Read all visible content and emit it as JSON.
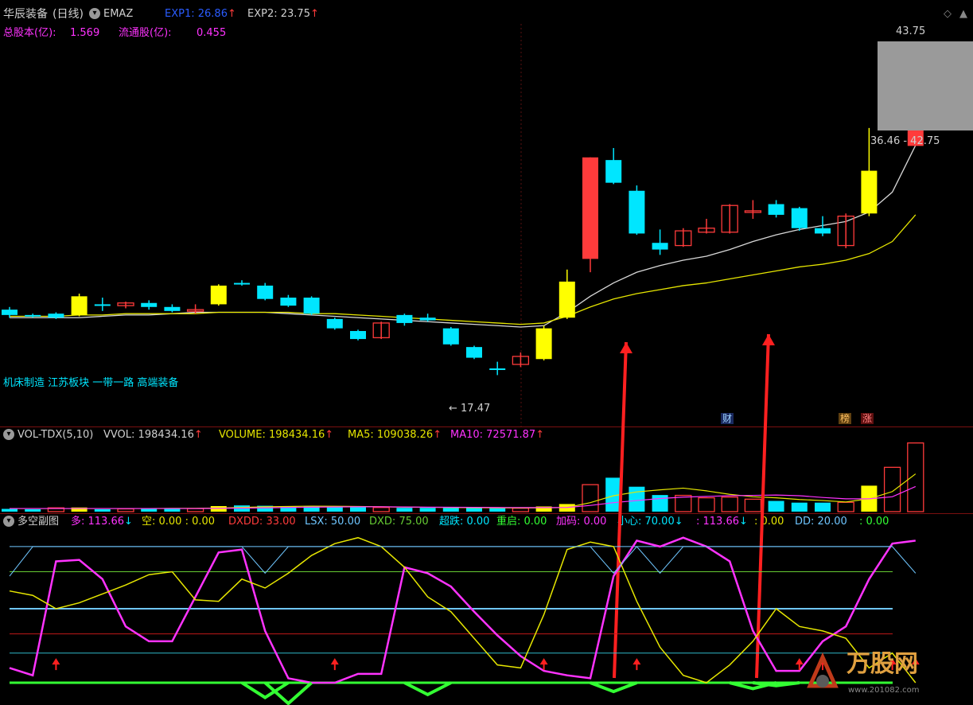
{
  "header": {
    "stock_name": "华辰装备",
    "period": "(日线)",
    "indicator_name": "EMAZ",
    "exp1_label": "EXP1: 26.86",
    "exp2_label": "EXP2: 23.75",
    "total_shares_label": "总股本(亿):",
    "total_shares_value": "1.569",
    "float_shares_label": "流通股(亿):",
    "float_shares_value": "0.455"
  },
  "annotations": {
    "sectors": "机床制造 江苏板块 一带一路 高端装备",
    "low_price": "17.47",
    "high_price": "43.75",
    "price_range": "36.46 - 42.75",
    "badge_finance": "财",
    "badge_rank": "榜",
    "badge_rise": "涨"
  },
  "volume_pane": {
    "title": "VOL-TDX(5,10)",
    "vvol": "VVOL: 198434.16",
    "volume": "VOLUME: 198434.16",
    "ma5": "MA5: 109038.26",
    "ma10": "MA10: 72571.87"
  },
  "osc_pane": {
    "title": "多空副图",
    "duo": "多: 113.66",
    "kong": "空: 0.00 : 0.00",
    "dxdd": "DXDD: 33.00",
    "lsx": "LSX: 50.00",
    "dxd": "DXD: 75.00",
    "chaodie": "超跌: 0.00",
    "chongqi": "重启: 0.00",
    "jiama": "加码: 0.00",
    "xiaoxin": "小心: 70.00",
    "val2": ": 113.66",
    "val3": ": 0.00",
    "dd": "DD: 20.00",
    "val4": ": 0.00"
  },
  "watermark": {
    "brand": "万股网",
    "url": "www.201082.com"
  },
  "colors": {
    "up": "#ff3b3b",
    "down": "#00e6ff",
    "flat": "#ffff00",
    "ma_white": "#d8d8d8",
    "ma_yellow": "#e6e600",
    "magenta": "#ff33ff",
    "green": "#33ff33",
    "header_text": "#d0d0d0",
    "pane_border": "#7a1010"
  },
  "chart_data": [
    {
      "type": "candlestick",
      "name": "EMAZ",
      "candles": [
        {
          "o": 24.2,
          "c": 23.8,
          "h": 24.4,
          "l": 23.6,
          "dir": "down"
        },
        {
          "o": 23.8,
          "c": 23.7,
          "h": 23.9,
          "l": 23.6,
          "dir": "down"
        },
        {
          "o": 23.6,
          "c": 23.9,
          "h": 24.0,
          "l": 23.5,
          "dir": "down"
        },
        {
          "o": 23.8,
          "c": 25.2,
          "h": 25.4,
          "l": 23.7,
          "dir": "flat"
        },
        {
          "o": 24.6,
          "c": 24.6,
          "h": 25.1,
          "l": 24.1,
          "dir": "down"
        },
        {
          "o": 24.7,
          "c": 24.5,
          "h": 24.8,
          "l": 24.3,
          "dir": "up"
        },
        {
          "o": 24.7,
          "c": 24.4,
          "h": 24.9,
          "l": 24.2,
          "dir": "down"
        },
        {
          "o": 24.4,
          "c": 24.1,
          "h": 24.6,
          "l": 24.0,
          "dir": "down"
        },
        {
          "o": 24.2,
          "c": 24.1,
          "h": 24.6,
          "l": 23.9,
          "dir": "up"
        },
        {
          "o": 24.6,
          "c": 26.0,
          "h": 26.1,
          "l": 24.5,
          "dir": "flat"
        },
        {
          "o": 26.2,
          "c": 26.1,
          "h": 26.4,
          "l": 26.0,
          "dir": "down"
        },
        {
          "o": 26.0,
          "c": 25.0,
          "h": 26.2,
          "l": 24.9,
          "dir": "down"
        },
        {
          "o": 25.1,
          "c": 24.5,
          "h": 25.3,
          "l": 24.4,
          "dir": "down"
        },
        {
          "o": 25.1,
          "c": 23.9,
          "h": 25.2,
          "l": 23.8,
          "dir": "down"
        },
        {
          "o": 23.5,
          "c": 22.8,
          "h": 23.6,
          "l": 22.7,
          "dir": "down"
        },
        {
          "o": 22.6,
          "c": 22.0,
          "h": 22.7,
          "l": 21.9,
          "dir": "down"
        },
        {
          "o": 22.1,
          "c": 23.2,
          "h": 23.3,
          "l": 22.0,
          "dir": "up"
        },
        {
          "o": 23.8,
          "c": 23.2,
          "h": 23.9,
          "l": 23.0,
          "dir": "down"
        },
        {
          "o": 23.6,
          "c": 23.4,
          "h": 23.9,
          "l": 23.3,
          "dir": "down"
        },
        {
          "o": 22.8,
          "c": 21.6,
          "h": 22.9,
          "l": 21.5,
          "dir": "down"
        },
        {
          "o": 21.4,
          "c": 20.6,
          "h": 21.5,
          "l": 20.5,
          "dir": "down"
        },
        {
          "o": 19.8,
          "c": 19.7,
          "h": 20.3,
          "l": 19.3,
          "dir": "down"
        },
        {
          "o": 20.1,
          "c": 20.7,
          "h": 21.0,
          "l": 19.9,
          "dir": "up"
        },
        {
          "o": 20.5,
          "c": 22.8,
          "h": 23.0,
          "l": 20.4,
          "dir": "flat"
        },
        {
          "o": 23.6,
          "c": 26.3,
          "h": 27.2,
          "l": 23.5,
          "dir": "flat"
        },
        {
          "o": 28.0,
          "c": 35.6,
          "h": 35.6,
          "l": 27.0,
          "dir": "up"
        },
        {
          "o": 35.4,
          "c": 33.7,
          "h": 36.3,
          "l": 33.6,
          "dir": "down"
        },
        {
          "o": 33.1,
          "c": 29.9,
          "h": 33.5,
          "l": 29.8,
          "dir": "down"
        },
        {
          "o": 29.2,
          "c": 28.7,
          "h": 30.2,
          "l": 28.3,
          "dir": "down"
        },
        {
          "o": 29.0,
          "c": 30.1,
          "h": 30.3,
          "l": 28.9,
          "dir": "up"
        },
        {
          "o": 30.0,
          "c": 30.3,
          "h": 31.0,
          "l": 29.9,
          "dir": "up"
        },
        {
          "o": 30.0,
          "c": 32.0,
          "h": 32.1,
          "l": 29.9,
          "dir": "up"
        },
        {
          "o": 31.5,
          "c": 31.6,
          "h": 32.4,
          "l": 31.0,
          "dir": "up"
        },
        {
          "o": 32.1,
          "c": 31.3,
          "h": 32.4,
          "l": 31.1,
          "dir": "down"
        },
        {
          "o": 31.8,
          "c": 30.3,
          "h": 31.9,
          "l": 30.1,
          "dir": "down"
        },
        {
          "o": 30.3,
          "c": 29.9,
          "h": 31.2,
          "l": 29.7,
          "dir": "down"
        },
        {
          "o": 29.0,
          "c": 31.2,
          "h": 31.4,
          "l": 28.8,
          "dir": "up"
        },
        {
          "o": 31.4,
          "c": 34.6,
          "h": 37.8,
          "l": 31.2,
          "dir": "flat"
        },
        {
          "o": 38.3,
          "c": 42.5,
          "h": 42.5,
          "l": 38.3,
          "dir": "up"
        },
        {
          "o": 36.46,
          "c": 42.75,
          "h": 43.75,
          "l": 36.46,
          "dir": "up"
        }
      ],
      "ma_white": [
        23.6,
        23.6,
        23.6,
        23.6,
        23.7,
        23.8,
        23.8,
        23.9,
        24.0,
        24.0,
        24.0,
        24.0,
        23.9,
        23.8,
        23.7,
        23.6,
        23.5,
        23.4,
        23.3,
        23.2,
        23.1,
        23.0,
        22.9,
        23.0,
        24.0,
        25.2,
        26.2,
        27.0,
        27.5,
        27.9,
        28.2,
        28.7,
        29.3,
        29.8,
        30.2,
        30.5,
        30.8,
        31.5,
        33.0,
        36.5
      ],
      "ma_yellow": [
        23.7,
        23.7,
        23.7,
        23.8,
        23.8,
        23.9,
        23.9,
        23.9,
        23.9,
        24.0,
        24.0,
        24.0,
        24.0,
        23.9,
        23.9,
        23.8,
        23.7,
        23.6,
        23.5,
        23.4,
        23.3,
        23.2,
        23.1,
        23.2,
        23.7,
        24.4,
        25.0,
        25.4,
        25.7,
        26.0,
        26.2,
        26.5,
        26.8,
        27.1,
        27.4,
        27.6,
        27.9,
        28.4,
        29.3,
        31.3
      ]
    },
    {
      "type": "bar",
      "name": "VOL-TDX(5,10)",
      "volume": [
        8000,
        7000,
        11000,
        12000,
        7000,
        8000,
        9000,
        10000,
        9000,
        16000,
        18000,
        17000,
        15000,
        15000,
        14000,
        13000,
        12000,
        11000,
        11000,
        11000,
        11000,
        10000,
        10000,
        15000,
        22000,
        78000,
        98000,
        72000,
        48000,
        47000,
        40000,
        42000,
        36000,
        31000,
        26000,
        26000,
        27000,
        75000,
        128000,
        198434.16
      ],
      "volume_dir": [
        "down",
        "down",
        "up",
        "flat",
        "down",
        "up",
        "down",
        "down",
        "up",
        "flat",
        "down",
        "down",
        "down",
        "down",
        "down",
        "down",
        "up",
        "down",
        "down",
        "down",
        "down",
        "down",
        "up",
        "flat",
        "flat",
        "up",
        "down",
        "down",
        "down",
        "up",
        "up",
        "up",
        "up",
        "down",
        "down",
        "down",
        "up",
        "flat",
        "up",
        "up"
      ],
      "ma5": [
        9000,
        9000,
        9000,
        9000,
        9000,
        9000,
        9000,
        9500,
        9500,
        10500,
        12000,
        14000,
        15000,
        16000,
        15500,
        15000,
        14000,
        13000,
        12500,
        12000,
        11500,
        11000,
        10500,
        11000,
        12000,
        26000,
        46000,
        57000,
        63000,
        68000,
        60000,
        50000,
        43000,
        40000,
        35000,
        32000,
        28000,
        37000,
        58000,
        109038.26
      ],
      "ma10": [
        9000,
        9000,
        9000,
        9000,
        9000,
        9000,
        9000,
        9000,
        9000,
        9500,
        10000,
        11000,
        12000,
        13000,
        13500,
        14000,
        14000,
        13500,
        13000,
        12800,
        12500,
        12000,
        11800,
        11800,
        12000,
        18000,
        26000,
        32000,
        38000,
        42000,
        44000,
        46000,
        47000,
        48000,
        46000,
        41000,
        37000,
        37000,
        43000,
        72571.87
      ]
    },
    {
      "type": "line",
      "name": "多空副图",
      "levels": {
        "top": 100,
        "upper": 75,
        "mid": 50,
        "lower": 33,
        "low": 20,
        "floor": 0
      },
      "series": [
        {
          "name": "多",
          "values": [
            10,
            5,
            82,
            83,
            70,
            38,
            28,
            28,
            58,
            88,
            90,
            35,
            3,
            0,
            0,
            6,
            6,
            78,
            74,
            65,
            48,
            32,
            18,
            8,
            5,
            3,
            72,
            96,
            92,
            98,
            92,
            82,
            35,
            8,
            8,
            28,
            38,
            70,
            94,
            96
          ]
        },
        {
          "name": "空",
          "values": [
            62,
            59,
            50,
            54,
            60,
            66,
            73,
            75,
            56,
            55,
            70,
            64,
            74,
            86,
            94,
            98,
            92,
            78,
            58,
            48,
            30,
            12,
            10,
            46,
            90,
            95,
            92,
            55,
            24,
            5,
            0,
            12,
            28,
            50,
            38,
            35,
            30,
            10,
            20,
            0
          ]
        },
        {
          "name": "DXDD",
          "values": [
            33,
            33,
            33,
            33,
            33,
            33,
            33,
            33,
            33,
            33,
            33,
            33,
            33,
            33,
            33,
            33,
            33,
            33,
            33,
            33,
            33,
            33,
            33,
            33,
            33,
            33,
            33,
            33,
            33,
            33,
            33,
            33,
            33,
            33,
            33,
            33,
            33,
            33,
            33,
            33
          ]
        },
        {
          "name": "LSX",
          "values": [
            50,
            50,
            50,
            50,
            50,
            50,
            50,
            50,
            50,
            50,
            50,
            50,
            50,
            50,
            50,
            50,
            50,
            50,
            50,
            50,
            50,
            50,
            50,
            50,
            50,
            50,
            50,
            50,
            50,
            50,
            50,
            50,
            50,
            50,
            50,
            50,
            50,
            50,
            50,
            50
          ]
        },
        {
          "name": "DXD",
          "values": [
            75,
            75,
            75,
            75,
            75,
            75,
            75,
            75,
            75,
            75,
            75,
            75,
            75,
            75,
            75,
            75,
            75,
            75,
            75,
            75,
            75,
            75,
            75,
            75,
            75,
            75,
            75,
            75,
            75,
            75,
            75,
            75,
            75,
            75,
            75,
            75,
            75,
            75,
            75,
            75
          ]
        },
        {
          "name": "DD",
          "values": [
            20,
            20,
            20,
            20,
            20,
            20,
            20,
            20,
            20,
            20,
            20,
            20,
            20,
            20,
            20,
            20,
            20,
            20,
            20,
            20,
            20,
            20,
            20,
            20,
            20,
            20,
            20,
            20,
            20,
            20,
            20,
            20,
            20,
            20,
            20,
            20,
            20,
            20,
            20,
            20
          ]
        },
        {
          "name": "小心",
          "values": [
            72,
            100,
            100,
            100,
            100,
            100,
            100,
            100,
            100,
            100,
            100,
            78,
            100,
            100,
            100,
            100,
            100,
            100,
            100,
            100,
            100,
            100,
            100,
            100,
            100,
            100,
            78,
            100,
            78,
            100,
            100,
            100,
            100,
            100,
            100,
            100,
            100,
            100,
            100,
            78
          ]
        }
      ],
      "buy_signals": [
        2,
        14,
        23,
        27,
        34,
        35,
        38,
        39
      ]
    }
  ]
}
